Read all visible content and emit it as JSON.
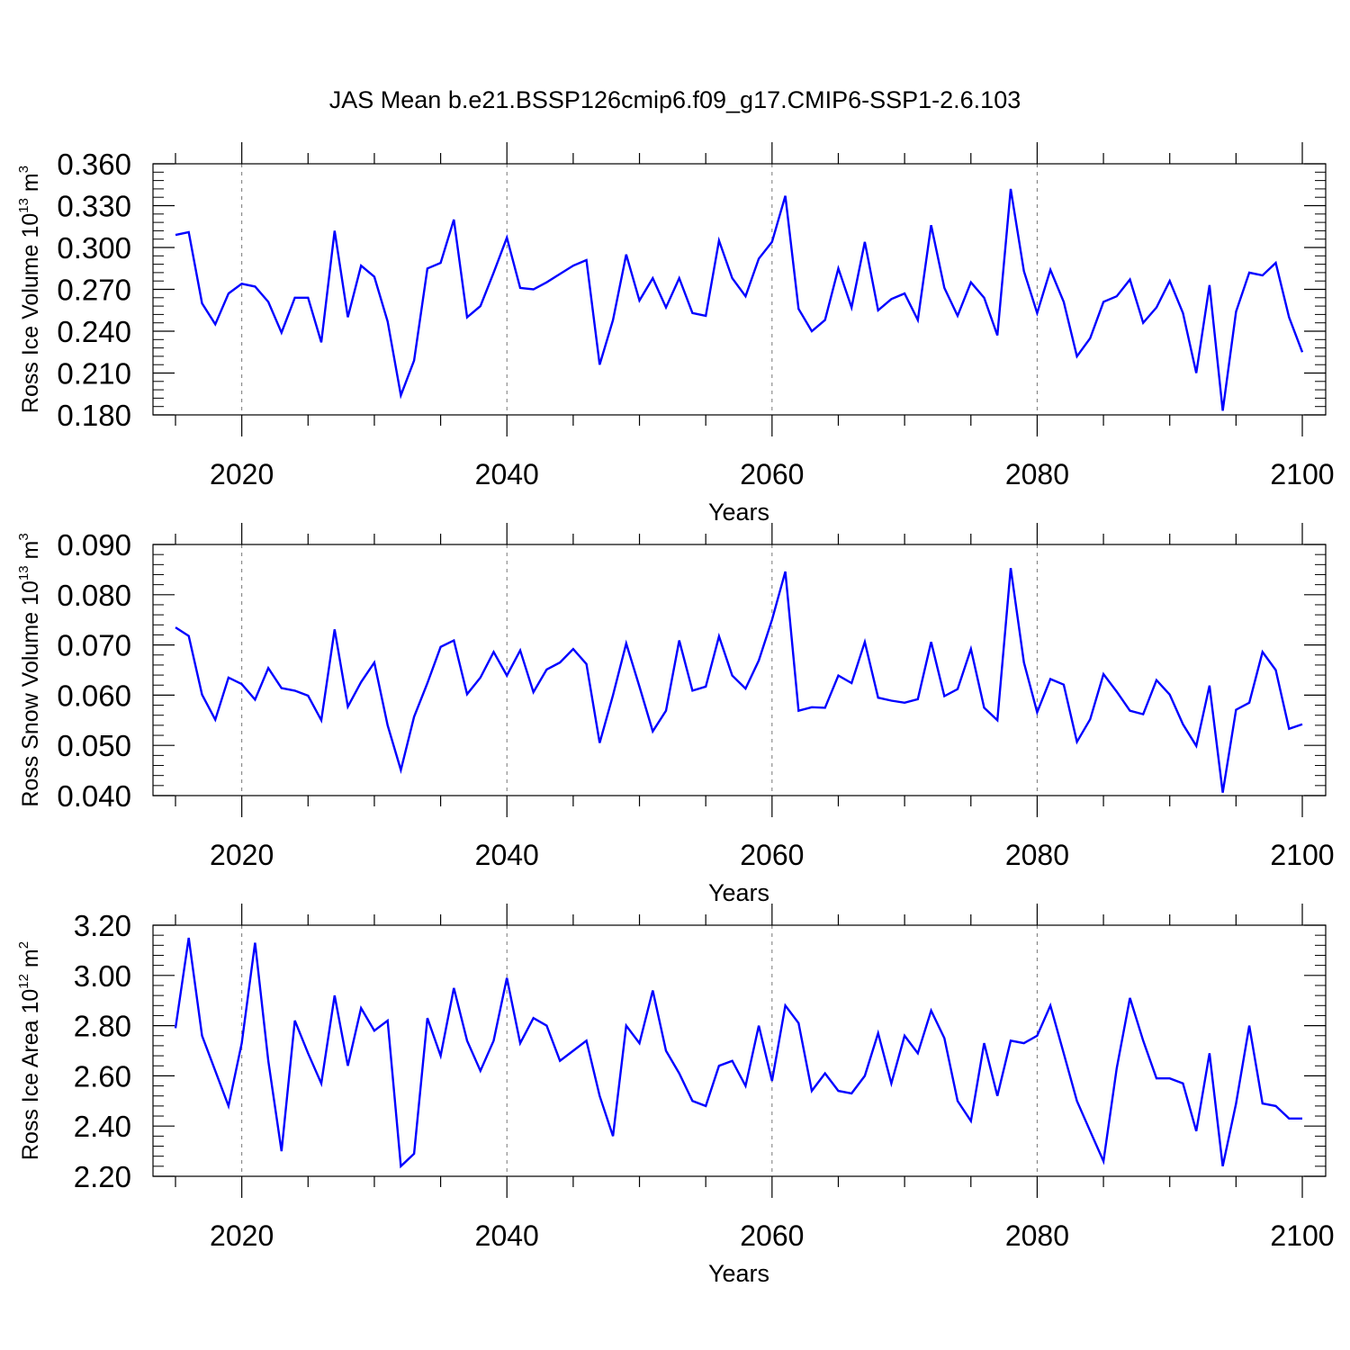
{
  "title": "JAS Mean b.e21.BSSP126cmip6.f09_g17.CMIP6-SSP1-2.6.103",
  "chart_data": [
    {
      "type": "line",
      "id": "ice-volume",
      "ylabel": {
        "text": "Ross Ice Volume 10",
        "exp": "13",
        "unit": " m",
        "unit_exp": "3"
      },
      "xlabel": "Years",
      "xlim": [
        2015,
        2100
      ],
      "ylim": [
        0.18,
        0.36
      ],
      "yticks": [
        "0.180",
        "0.210",
        "0.240",
        "0.270",
        "0.300",
        "0.330",
        "0.360"
      ],
      "xticks": [
        "2020",
        "2040",
        "2060",
        "2080",
        "2100"
      ],
      "vgrid": [
        2020,
        2040,
        2060,
        2080
      ],
      "line_color": "#0000ff",
      "x": [
        2015,
        2016,
        2017,
        2018,
        2019,
        2020,
        2021,
        2022,
        2023,
        2024,
        2025,
        2026,
        2027,
        2028,
        2029,
        2030,
        2031,
        2032,
        2033,
        2034,
        2035,
        2036,
        2037,
        2038,
        2039,
        2040,
        2041,
        2042,
        2043,
        2044,
        2045,
        2046,
        2047,
        2048,
        2049,
        2050,
        2051,
        2052,
        2053,
        2054,
        2055,
        2056,
        2057,
        2058,
        2059,
        2060,
        2061,
        2062,
        2063,
        2064,
        2065,
        2066,
        2067,
        2068,
        2069,
        2070,
        2071,
        2072,
        2073,
        2074,
        2075,
        2076,
        2077,
        2078,
        2079,
        2080,
        2081,
        2082,
        2083,
        2084,
        2085,
        2086,
        2087,
        2088,
        2089,
        2090,
        2091,
        2092,
        2093,
        2094,
        2095,
        2096,
        2097,
        2098,
        2099,
        2100
      ],
      "values": [
        0.309,
        0.311,
        0.26,
        0.245,
        0.267,
        0.274,
        0.272,
        0.261,
        0.239,
        0.264,
        0.264,
        0.232,
        0.312,
        0.25,
        0.287,
        0.279,
        0.247,
        0.194,
        0.219,
        0.285,
        0.289,
        0.32,
        0.25,
        0.258,
        0.282,
        0.307,
        0.271,
        0.27,
        0.275,
        0.281,
        0.287,
        0.291,
        0.216,
        0.248,
        0.295,
        0.262,
        0.278,
        0.257,
        0.278,
        0.253,
        0.251,
        0.305,
        0.278,
        0.265,
        0.292,
        0.304,
        0.337,
        0.256,
        0.24,
        0.248,
        0.285,
        0.257,
        0.304,
        0.255,
        0.263,
        0.267,
        0.248,
        0.316,
        0.271,
        0.251,
        0.275,
        0.264,
        0.237,
        0.342,
        0.283,
        0.253,
        0.284,
        0.261,
        0.222,
        0.235,
        0.261,
        0.265,
        0.277,
        0.246,
        0.257,
        0.276,
        0.253,
        0.21,
        0.273,
        0.183,
        0.254,
        0.282,
        0.28,
        0.289,
        0.25,
        0.225
      ]
    },
    {
      "type": "line",
      "id": "snow-volume",
      "ylabel": {
        "text": "Ross Snow Volume 10",
        "exp": "13",
        "unit": " m",
        "unit_exp": "3"
      },
      "xlabel": "Years",
      "xlim": [
        2015,
        2100
      ],
      "ylim": [
        0.04,
        0.09
      ],
      "yticks": [
        "0.040",
        "0.050",
        "0.060",
        "0.070",
        "0.080",
        "0.090"
      ],
      "xticks": [
        "2020",
        "2040",
        "2060",
        "2080",
        "2100"
      ],
      "vgrid": [
        2020,
        2040,
        2060,
        2080
      ],
      "line_color": "#0000ff",
      "x": [
        2015,
        2016,
        2017,
        2018,
        2019,
        2020,
        2021,
        2022,
        2023,
        2024,
        2025,
        2026,
        2027,
        2028,
        2029,
        2030,
        2031,
        2032,
        2033,
        2034,
        2035,
        2036,
        2037,
        2038,
        2039,
        2040,
        2041,
        2042,
        2043,
        2044,
        2045,
        2046,
        2047,
        2048,
        2049,
        2050,
        2051,
        2052,
        2053,
        2054,
        2055,
        2056,
        2057,
        2058,
        2059,
        2060,
        2061,
        2062,
        2063,
        2064,
        2065,
        2066,
        2067,
        2068,
        2069,
        2070,
        2071,
        2072,
        2073,
        2074,
        2075,
        2076,
        2077,
        2078,
        2079,
        2080,
        2081,
        2082,
        2083,
        2084,
        2085,
        2086,
        2087,
        2088,
        2089,
        2090,
        2091,
        2092,
        2093,
        2094,
        2095,
        2096,
        2097,
        2098,
        2099,
        2100
      ],
      "values": [
        0.0735,
        0.0718,
        0.0601,
        0.0551,
        0.0635,
        0.0622,
        0.0591,
        0.0654,
        0.0614,
        0.0609,
        0.0599,
        0.055,
        0.0731,
        0.0577,
        0.0626,
        0.0665,
        0.054,
        0.0451,
        0.0557,
        0.0624,
        0.0696,
        0.0709,
        0.0602,
        0.0635,
        0.0686,
        0.0639,
        0.0689,
        0.0606,
        0.0651,
        0.0665,
        0.0692,
        0.0662,
        0.0505,
        0.06,
        0.0703,
        0.0617,
        0.0528,
        0.0569,
        0.0709,
        0.0609,
        0.0617,
        0.0717,
        0.0639,
        0.0613,
        0.0669,
        0.075,
        0.0846,
        0.0569,
        0.0576,
        0.0575,
        0.0639,
        0.0624,
        0.0706,
        0.0595,
        0.0589,
        0.0585,
        0.0592,
        0.0706,
        0.0598,
        0.0612,
        0.0692,
        0.0575,
        0.055,
        0.0853,
        0.0665,
        0.0566,
        0.0632,
        0.0621,
        0.0507,
        0.0552,
        0.0642,
        0.0607,
        0.0569,
        0.0562,
        0.063,
        0.0601,
        0.0542,
        0.0499,
        0.0619,
        0.0406,
        0.0571,
        0.0585,
        0.0686,
        0.065,
        0.0533,
        0.0542
      ]
    },
    {
      "type": "line",
      "id": "ice-area",
      "ylabel": {
        "text": "Ross Ice Area 10",
        "exp": "12",
        "unit": " m",
        "unit_exp": "2"
      },
      "xlabel": "Years",
      "xlim": [
        2015,
        2100
      ],
      "ylim": [
        2.2,
        3.2
      ],
      "yticks": [
        "2.20",
        "2.40",
        "2.60",
        "2.80",
        "3.00",
        "3.20"
      ],
      "xticks": [
        "2020",
        "2040",
        "2060",
        "2080",
        "2100"
      ],
      "vgrid": [
        2020,
        2040,
        2060,
        2080
      ],
      "line_color": "#0000ff",
      "x": [
        2015,
        2016,
        2017,
        2018,
        2019,
        2020,
        2021,
        2022,
        2023,
        2024,
        2025,
        2026,
        2027,
        2028,
        2029,
        2030,
        2031,
        2032,
        2033,
        2034,
        2035,
        2036,
        2037,
        2038,
        2039,
        2040,
        2041,
        2042,
        2043,
        2044,
        2045,
        2046,
        2047,
        2048,
        2049,
        2050,
        2051,
        2052,
        2053,
        2054,
        2055,
        2056,
        2057,
        2058,
        2059,
        2060,
        2061,
        2062,
        2063,
        2064,
        2065,
        2066,
        2067,
        2068,
        2069,
        2070,
        2071,
        2072,
        2073,
        2074,
        2075,
        2076,
        2077,
        2078,
        2079,
        2080,
        2081,
        2082,
        2083,
        2084,
        2085,
        2086,
        2087,
        2088,
        2089,
        2090,
        2091,
        2092,
        2093,
        2094,
        2095,
        2096,
        2097,
        2098,
        2099,
        2100
      ],
      "values": [
        2.79,
        3.15,
        2.76,
        2.62,
        2.48,
        2.73,
        3.13,
        2.66,
        2.3,
        2.82,
        2.69,
        2.57,
        2.92,
        2.64,
        2.87,
        2.78,
        2.82,
        2.24,
        2.29,
        2.83,
        2.68,
        2.95,
        2.74,
        2.62,
        2.74,
        2.99,
        2.73,
        2.83,
        2.8,
        2.66,
        2.7,
        2.74,
        2.52,
        2.36,
        2.8,
        2.73,
        2.94,
        2.7,
        2.61,
        2.5,
        2.48,
        2.64,
        2.66,
        2.56,
        2.8,
        2.58,
        2.88,
        2.81,
        2.54,
        2.61,
        2.54,
        2.53,
        2.6,
        2.77,
        2.57,
        2.76,
        2.69,
        2.86,
        2.75,
        2.5,
        2.42,
        2.73,
        2.52,
        2.74,
        2.73,
        2.76,
        2.88,
        2.69,
        2.5,
        2.38,
        2.26,
        2.63,
        2.91,
        2.74,
        2.59,
        2.59,
        2.57,
        2.38,
        2.69,
        2.24,
        2.49,
        2.8,
        2.49,
        2.48,
        2.43,
        2.43
      ]
    }
  ]
}
